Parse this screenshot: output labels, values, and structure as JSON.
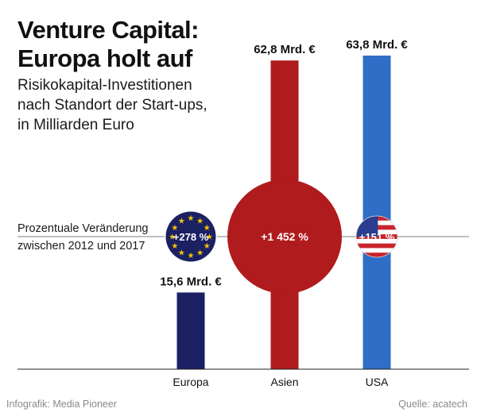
{
  "title_line1": "Venture Capital:",
  "title_line2": "Europa holt auf",
  "subtitle_line1": "Risikokapital-Investitionen",
  "subtitle_line2": "nach Standort der Start-ups,",
  "subtitle_line3": "in Milliarden Euro",
  "change_label_line1": "Prozentuale Veränderung",
  "change_label_line2": "zwischen 2012 und 2017",
  "credit": "Infografik: Media Pioneer",
  "source": "Quelle: acatech",
  "colors": {
    "europa": "#1b2063",
    "asien": "#b01b1d",
    "usa": "#2f6ec6",
    "eu_star": "#f2c400",
    "us_stripe": "#c8242b",
    "us_canton": "#2a3d8f"
  },
  "chart_data": {
    "type": "bar",
    "categories": [
      "Europa",
      "Asien",
      "USA"
    ],
    "values": [
      15.6,
      62.8,
      63.8
    ],
    "value_labels": [
      "15,6 Mrd. €",
      "62,8 Mrd. €",
      "63,8 Mrd. €"
    ],
    "percent_change": [
      278,
      1452,
      151
    ],
    "percent_labels": [
      "+278 %",
      "+1 452 %",
      "+151 %"
    ],
    "unit": "Milliarden Euro",
    "grid": false,
    "legend": "none"
  }
}
